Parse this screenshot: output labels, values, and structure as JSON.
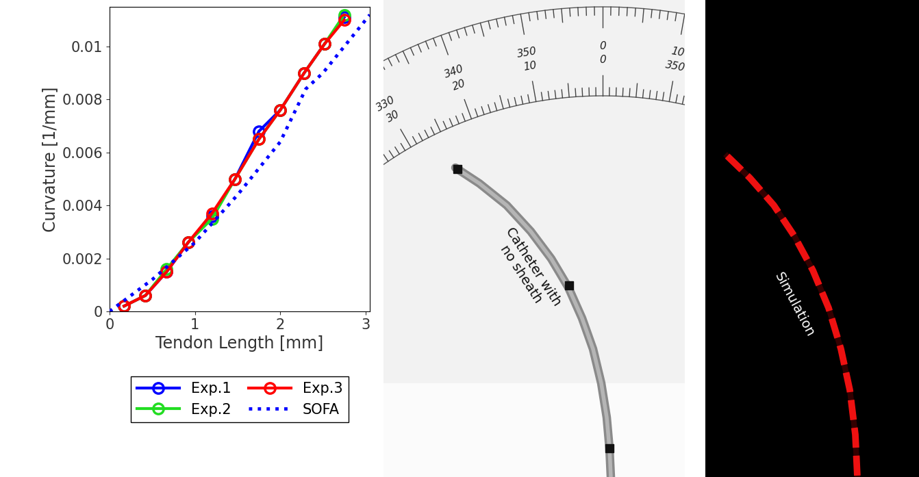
{
  "chart_data": {
    "type": "line",
    "xlabel": "Tendon Length [mm]",
    "ylabel": "Curvature [1/mm]",
    "xlim": [
      0,
      3.05
    ],
    "ylim": [
      0,
      0.0115
    ],
    "xticks": [
      0,
      1,
      2,
      3
    ],
    "yticks": [
      0,
      0.002,
      0.004,
      0.006,
      0.008,
      0.01
    ],
    "legend": "upper center",
    "series": [
      {
        "name": "Exp.1",
        "color": "#0000ff",
        "marker": "circle",
        "line_style": "solid",
        "x": [
          0.17,
          0.42,
          0.67,
          0.92,
          1.2,
          1.47,
          1.75,
          2.0,
          2.28,
          2.52,
          2.75
        ],
        "values": [
          0.0002,
          0.0006,
          0.0015,
          0.0026,
          0.0036,
          0.005,
          0.0068,
          0.0076,
          0.009,
          0.0101,
          0.0111
        ]
      },
      {
        "name": "Exp.2",
        "color": "#22dd22",
        "marker": "circle",
        "line_style": "solid",
        "x": [
          0.17,
          0.42,
          0.67,
          0.92,
          1.2,
          1.47,
          1.75,
          2.0,
          2.28,
          2.52,
          2.75
        ],
        "values": [
          0.0002,
          0.0006,
          0.0016,
          0.0026,
          0.0035,
          0.005,
          0.0065,
          0.0076,
          0.009,
          0.0101,
          0.0112
        ]
      },
      {
        "name": "Exp.3",
        "color": "#ff0000",
        "marker": "circle",
        "line_style": "solid",
        "x": [
          0.17,
          0.42,
          0.67,
          0.92,
          1.2,
          1.47,
          1.75,
          2.0,
          2.28,
          2.52,
          2.75
        ],
        "values": [
          0.0002,
          0.0006,
          0.0015,
          0.0026,
          0.0037,
          0.005,
          0.0065,
          0.0076,
          0.009,
          0.0101,
          0.011
        ]
      },
      {
        "name": "SOFA",
        "color": "#0000ff",
        "line_style": "dotted",
        "x": [
          0,
          0.5,
          1.0,
          1.5,
          2.0,
          2.3,
          2.5,
          3.05
        ],
        "values": [
          0,
          0.0012,
          0.0026,
          0.0044,
          0.0064,
          0.0084,
          0.009,
          0.0112
        ]
      }
    ]
  },
  "photo": {
    "label": "Catheter with\nno sheath",
    "protractor": {
      "outer_labels": [
        330,
        340,
        350,
        0,
        10
      ],
      "inner_labels": [
        30,
        20,
        10,
        0,
        350
      ]
    }
  },
  "simulation": {
    "label": "Simulation"
  }
}
